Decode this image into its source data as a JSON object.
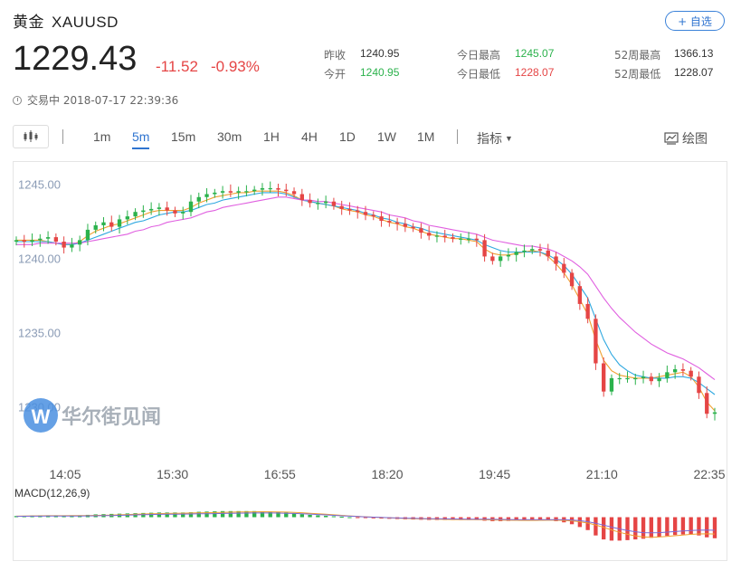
{
  "header": {
    "name": "黄金",
    "symbol": "XAUUSD",
    "watch_label": "+ 自选",
    "price": "1229.43",
    "change": "-11.52",
    "change_pct": "-0.93%",
    "status": "交易中 2018-07-17 22:39:36",
    "stats": [
      {
        "label": "昨收",
        "value": "1240.95",
        "color": "#333333"
      },
      {
        "label": "今开",
        "value": "1240.95",
        "color": "#2bb24c"
      },
      {
        "label": "今日最高",
        "value": "1245.07",
        "color": "#2bb24c"
      },
      {
        "label": "今日最低",
        "value": "1228.07",
        "color": "#e54545"
      },
      {
        "label": "52周最高",
        "value": "1366.13",
        "color": "#333333"
      },
      {
        "label": "52周最低",
        "value": "1228.07",
        "color": "#333333"
      }
    ]
  },
  "toolbar": {
    "periods": [
      "1m",
      "5m",
      "15m",
      "30m",
      "1H",
      "4H",
      "1D",
      "1W",
      "1M"
    ],
    "active_period": "5m",
    "indicator_label": "指标",
    "draw_label": "绘图"
  },
  "watermark": "华尔街见闻",
  "colors": {
    "up": "#2bb24c",
    "down": "#e54545",
    "accent": "#2f74d0"
  },
  "chart_data": {
    "type": "candlestick",
    "y_ticks": [
      "1245.00",
      "1240.00",
      "1235.00",
      "1230.00"
    ],
    "ylim": [
      1227.3,
      1246.2
    ],
    "x_ticks": [
      "14:05",
      "15:30",
      "16:55",
      "18:20",
      "19:45",
      "21:10",
      "22:35"
    ],
    "close_series": [
      1241.3,
      1241.2,
      1241.3,
      1241.4,
      1241.5,
      1241.2,
      1240.8,
      1241.0,
      1241.3,
      1242.0,
      1242.3,
      1242.5,
      1242.2,
      1242.7,
      1242.9,
      1243.2,
      1243.3,
      1243.4,
      1243.5,
      1243.3,
      1243.1,
      1243.2,
      1243.9,
      1244.2,
      1244.4,
      1244.5,
      1244.6,
      1244.5,
      1244.6,
      1244.6,
      1244.7,
      1244.8,
      1244.8,
      1244.7,
      1244.6,
      1244.4,
      1244.0,
      1243.8,
      1243.8,
      1243.9,
      1243.6,
      1243.4,
      1243.3,
      1243.2,
      1243.0,
      1242.9,
      1242.6,
      1242.5,
      1242.4,
      1242.2,
      1242.1,
      1241.8,
      1241.6,
      1241.6,
      1241.5,
      1241.4,
      1241.4,
      1241.4,
      1241.3,
      1240.2,
      1239.9,
      1240.2,
      1240.3,
      1240.5,
      1240.6,
      1240.7,
      1240.6,
      1240.2,
      1239.7,
      1239.1,
      1238.2,
      1237.0,
      1236.0,
      1233.0,
      1231.1,
      1232.0,
      1232.0,
      1232.0,
      1232.0,
      1232.1,
      1231.8,
      1232.0,
      1232.4,
      1232.6,
      1232.5,
      1232.1,
      1231.0,
      1229.6,
      1229.7
    ],
    "ma_lines": [
      {
        "color": "#f0a030",
        "values": [
          1241.3,
          1241.3,
          1241.3,
          1241.3,
          1241.2,
          1241.1,
          1241.0,
          1241.0,
          1241.2,
          1241.6,
          1241.9,
          1242.1,
          1242.3,
          1242.4,
          1242.6,
          1242.8,
          1243.0,
          1243.2,
          1243.3,
          1243.3,
          1243.3,
          1243.3,
          1243.5,
          1243.8,
          1244.0,
          1244.2,
          1244.3,
          1244.4,
          1244.5,
          1244.5,
          1244.6,
          1244.6,
          1244.6,
          1244.6,
          1244.5,
          1244.3,
          1244.0,
          1243.9,
          1243.8,
          1243.7,
          1243.6,
          1243.4,
          1243.3,
          1243.2,
          1243.0,
          1242.9,
          1242.7,
          1242.5,
          1242.4,
          1242.2,
          1242.1,
          1241.9,
          1241.7,
          1241.6,
          1241.5,
          1241.4,
          1241.4,
          1241.3,
          1241.2,
          1240.7,
          1240.4,
          1240.3,
          1240.3,
          1240.4,
          1240.5,
          1240.6,
          1240.5,
          1240.2,
          1239.7,
          1239.1,
          1238.3,
          1237.3,
          1236.3,
          1234.6,
          1233.2,
          1232.5,
          1232.2,
          1232.1,
          1232.0,
          1232.0,
          1232.0,
          1232.1,
          1232.2,
          1232.3,
          1232.4,
          1232.1,
          1231.4,
          1230.4,
          1229.8
        ]
      },
      {
        "color": "#2fa8e0",
        "values": [
          1241.2,
          1241.2,
          1241.2,
          1241.2,
          1241.2,
          1241.1,
          1241.0,
          1241.0,
          1241.1,
          1241.3,
          1241.5,
          1241.7,
          1241.9,
          1242.1,
          1242.3,
          1242.5,
          1242.6,
          1242.8,
          1243.0,
          1243.1,
          1243.2,
          1243.2,
          1243.3,
          1243.5,
          1243.7,
          1243.8,
          1244.0,
          1244.1,
          1244.2,
          1244.3,
          1244.4,
          1244.5,
          1244.5,
          1244.5,
          1244.4,
          1244.2,
          1244.0,
          1243.9,
          1243.8,
          1243.7,
          1243.6,
          1243.5,
          1243.4,
          1243.3,
          1243.1,
          1243.0,
          1242.8,
          1242.7,
          1242.5,
          1242.4,
          1242.2,
          1242.1,
          1241.9,
          1241.8,
          1241.7,
          1241.6,
          1241.5,
          1241.4,
          1241.3,
          1241.0,
          1240.8,
          1240.6,
          1240.5,
          1240.5,
          1240.5,
          1240.5,
          1240.5,
          1240.3,
          1240.0,
          1239.6,
          1239.0,
          1238.2,
          1237.4,
          1236.0,
          1234.6,
          1233.6,
          1232.9,
          1232.5,
          1232.2,
          1232.1,
          1232.0,
          1232.0,
          1232.0,
          1232.1,
          1232.1,
          1232.0,
          1231.7,
          1231.3,
          1230.9
        ]
      },
      {
        "color": "#e060e0",
        "values": [
          1241.0,
          1241.0,
          1241.0,
          1241.1,
          1241.1,
          1241.1,
          1241.1,
          1241.1,
          1241.1,
          1241.2,
          1241.3,
          1241.4,
          1241.5,
          1241.6,
          1241.7,
          1241.9,
          1242.0,
          1242.2,
          1242.3,
          1242.5,
          1242.6,
          1242.7,
          1242.8,
          1243.0,
          1243.2,
          1243.3,
          1243.5,
          1243.6,
          1243.7,
          1243.8,
          1243.9,
          1244.0,
          1244.1,
          1244.2,
          1244.2,
          1244.1,
          1244.0,
          1244.0,
          1243.9,
          1243.9,
          1243.8,
          1243.7,
          1243.6,
          1243.5,
          1243.4,
          1243.3,
          1243.2,
          1243.0,
          1242.9,
          1242.8,
          1242.6,
          1242.5,
          1242.3,
          1242.2,
          1242.1,
          1242.0,
          1241.9,
          1241.8,
          1241.7,
          1241.5,
          1241.3,
          1241.2,
          1241.1,
          1241.0,
          1240.9,
          1240.9,
          1240.8,
          1240.7,
          1240.5,
          1240.2,
          1239.9,
          1239.5,
          1239.0,
          1238.2,
          1237.4,
          1236.7,
          1236.1,
          1235.6,
          1235.1,
          1234.7,
          1234.3,
          1234.0,
          1233.7,
          1233.5,
          1233.3,
          1233.0,
          1232.7,
          1232.3,
          1231.9
        ]
      }
    ],
    "macd": {
      "label": "MACD(12,26,9)",
      "histogram": [
        0.05,
        0.06,
        0.07,
        0.08,
        0.08,
        0.08,
        0.07,
        0.07,
        0.08,
        0.1,
        0.12,
        0.13,
        0.14,
        0.15,
        0.16,
        0.17,
        0.18,
        0.19,
        0.2,
        0.2,
        0.2,
        0.2,
        0.21,
        0.23,
        0.24,
        0.25,
        0.26,
        0.26,
        0.26,
        0.26,
        0.26,
        0.25,
        0.24,
        0.22,
        0.2,
        0.17,
        0.13,
        0.1,
        0.08,
        0.06,
        0.04,
        0.02,
        0.0,
        -0.02,
        -0.04,
        -0.05,
        -0.06,
        -0.07,
        -0.08,
        -0.09,
        -0.1,
        -0.11,
        -0.12,
        -0.12,
        -0.12,
        -0.12,
        -0.12,
        -0.12,
        -0.12,
        -0.15,
        -0.17,
        -0.17,
        -0.16,
        -0.15,
        -0.14,
        -0.13,
        -0.13,
        -0.14,
        -0.17,
        -0.22,
        -0.3,
        -0.42,
        -0.55,
        -0.78,
        -0.95,
        -1.0,
        -1.0,
        -0.98,
        -0.95,
        -0.92,
        -0.88,
        -0.85,
        -0.8,
        -0.76,
        -0.74,
        -0.74,
        -0.78,
        -0.86,
        -0.9
      ],
      "ylim": [
        -1.1,
        0.6
      ]
    }
  }
}
